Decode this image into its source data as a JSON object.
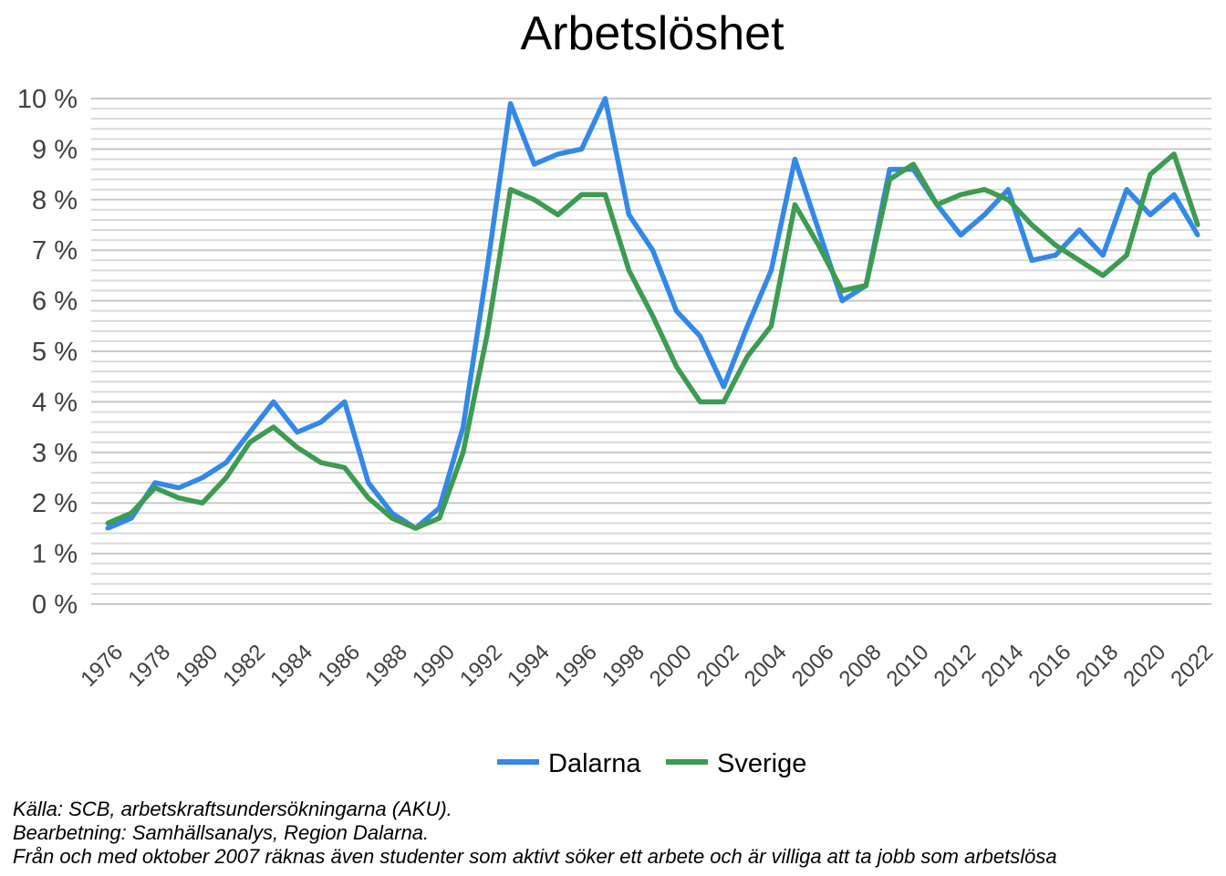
{
  "chart_data": {
    "type": "line",
    "title": "Arbetslöshet",
    "x": [
      1976,
      1977,
      1978,
      1979,
      1980,
      1981,
      1982,
      1983,
      1984,
      1985,
      1986,
      1987,
      1988,
      1989,
      1990,
      1991,
      1992,
      1993,
      1994,
      1995,
      1996,
      1997,
      1998,
      1999,
      2000,
      2001,
      2002,
      2003,
      2004,
      2005,
      2006,
      2007,
      2008,
      2009,
      2010,
      2011,
      2012,
      2013,
      2014,
      2015,
      2016,
      2017,
      2018,
      2019,
      2020,
      2021,
      2022
    ],
    "xticks": [
      1976,
      1978,
      1980,
      1982,
      1984,
      1986,
      1988,
      1990,
      1992,
      1994,
      1996,
      1998,
      2000,
      2002,
      2004,
      2006,
      2008,
      2010,
      2012,
      2014,
      2016,
      2018,
      2020,
      2022
    ],
    "xtick_labels": [
      "1976",
      "1978",
      "1980",
      "1982",
      "1984",
      "1986",
      "1988",
      "1990",
      "1992",
      "1994",
      "1996",
      "1998",
      "2000",
      "2002",
      "2004",
      "2006",
      "2008",
      "2010",
      "2012",
      "2014",
      "2016",
      "2018",
      "2020",
      "2022"
    ],
    "yticks": [
      0,
      1,
      2,
      3,
      4,
      5,
      6,
      7,
      8,
      9,
      10
    ],
    "ytick_labels": [
      "0 %",
      "1 %",
      "2 %",
      "3 %",
      "4 %",
      "5 %",
      "6 %",
      "7 %",
      "8 %",
      "9 %",
      "10 %"
    ],
    "xlim": [
      1976,
      2022
    ],
    "ylim": [
      0,
      10
    ],
    "grid": true,
    "legend_position": "bottom",
    "series": [
      {
        "name": "Dalarna",
        "color": "#3388e8",
        "values": [
          1.5,
          1.7,
          2.4,
          2.3,
          2.5,
          2.8,
          3.4,
          4.0,
          3.4,
          3.6,
          4.0,
          2.4,
          1.8,
          1.5,
          1.9,
          3.5,
          6.6,
          9.9,
          8.7,
          8.9,
          9.0,
          10.0,
          7.7,
          7.0,
          5.8,
          5.3,
          4.3,
          5.5,
          6.6,
          8.8,
          7.4,
          6.0,
          6.3,
          8.6,
          8.6,
          7.9,
          7.3,
          7.7,
          8.2,
          6.8,
          6.9,
          7.4,
          6.9,
          8.2,
          7.7,
          8.1,
          7.3
        ]
      },
      {
        "name": "Sverige",
        "color": "#3d9b52",
        "values": [
          1.6,
          1.8,
          2.3,
          2.1,
          2.0,
          2.5,
          3.2,
          3.5,
          3.1,
          2.8,
          2.7,
          2.1,
          1.7,
          1.5,
          1.7,
          3.0,
          5.3,
          8.2,
          8.0,
          7.7,
          8.1,
          8.1,
          6.6,
          5.7,
          4.7,
          4.0,
          4.0,
          4.9,
          5.5,
          7.9,
          7.1,
          6.2,
          6.3,
          8.4,
          8.7,
          7.9,
          8.1,
          8.2,
          8.0,
          7.5,
          7.1,
          6.8,
          6.5,
          6.9,
          8.5,
          8.9,
          7.5
        ]
      }
    ]
  },
  "footnotes": [
    "Källa: SCB, arbetskraftsundersökningarna (AKU).",
    "Bearbetning: Samhällsanalys, Region Dalarna.",
    "Från och med oktober 2007 räknas även studenter som aktivt söker ett arbete och är villiga att ta jobb som arbetslösa"
  ]
}
